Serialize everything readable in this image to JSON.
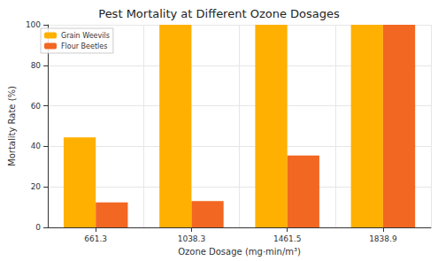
{
  "chart_data": {
    "type": "bar",
    "title": "Pest Mortality at Different Ozone Dosages",
    "x_label": "Ozone Dosage (mg·min/m³)",
    "y_label": "Mortality Rate (%)",
    "categories": [
      "661.3",
      "1038.3",
      "1461.5",
      "1838.9"
    ],
    "series": [
      {
        "name": "Grain Weevils",
        "color": "#ffb000",
        "values": [
          44.4,
          100,
          100,
          100
        ]
      },
      {
        "name": "Flour Beetles",
        "color": "#f26722",
        "values": [
          12.3,
          13.0,
          35.5,
          100
        ]
      }
    ],
    "ylim": [
      0,
      100
    ],
    "yticks": [
      0,
      20,
      40,
      60,
      80,
      100
    ],
    "grid": true,
    "legend": "upper left"
  }
}
